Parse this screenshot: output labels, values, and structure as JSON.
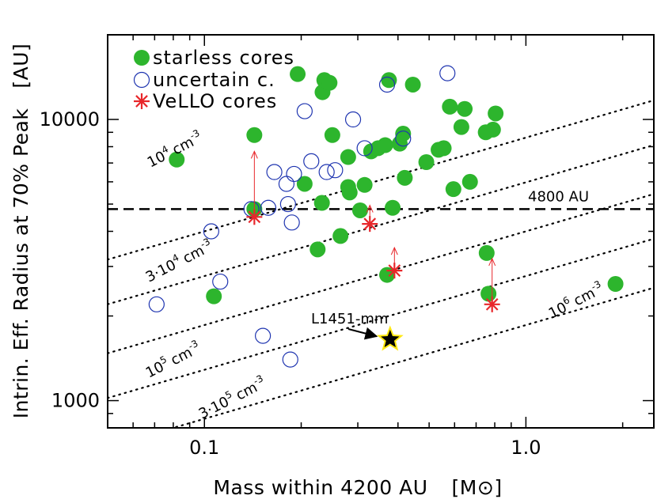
{
  "chart_data": {
    "type": "scatter",
    "x_scale": "log",
    "y_scale": "log",
    "xlim": [
      0.05,
      2.5
    ],
    "ylim": [
      800,
      20000
    ],
    "xlabel": "Mass within 4200 AU",
    "xlabel_unit": "[M⊙]",
    "ylabel": "Intrin. Eff. Radius at 70% Peak",
    "ylabel_unit": "[AU]",
    "x_ticks": [
      {
        "value": 0.1,
        "label": "0.1"
      },
      {
        "value": 1.0,
        "label": "1.0"
      }
    ],
    "y_ticks": [
      {
        "value": 1000,
        "label": "1000"
      },
      {
        "value": 10000,
        "label": "10000"
      }
    ],
    "legend": {
      "position": "top-left",
      "entries": [
        {
          "label": "starless cores",
          "symbol": "filled-circle",
          "color": "#2db52d"
        },
        {
          "label": "uncertain c.",
          "symbol": "open-circle",
          "color": "#1f35b0"
        },
        {
          "label": "VeLLO cores",
          "symbol": "asterisk",
          "color": "#e8272b"
        }
      ]
    },
    "series": [
      {
        "name": "starless cores",
        "color": "#2db52d",
        "points": [
          [
            0.082,
            7200
          ],
          [
            0.107,
            2350
          ],
          [
            0.143,
            8800
          ],
          [
            0.143,
            4800
          ],
          [
            0.195,
            14500
          ],
          [
            0.205,
            5900
          ],
          [
            0.225,
            3450
          ],
          [
            0.232,
            5050
          ],
          [
            0.233,
            12500
          ],
          [
            0.236,
            13800
          ],
          [
            0.245,
            13500
          ],
          [
            0.25,
            8800
          ],
          [
            0.265,
            3850
          ],
          [
            0.28,
            7350
          ],
          [
            0.28,
            5750
          ],
          [
            0.283,
            5500
          ],
          [
            0.305,
            4750
          ],
          [
            0.315,
            5850
          ],
          [
            0.33,
            7700
          ],
          [
            0.347,
            7900
          ],
          [
            0.365,
            8100
          ],
          [
            0.37,
            2800
          ],
          [
            0.375,
            13800
          ],
          [
            0.385,
            4850
          ],
          [
            0.405,
            8200
          ],
          [
            0.415,
            8900
          ],
          [
            0.42,
            6200
          ],
          [
            0.445,
            13300
          ],
          [
            0.49,
            7050
          ],
          [
            0.535,
            7800
          ],
          [
            0.555,
            7900
          ],
          [
            0.58,
            11100
          ],
          [
            0.595,
            5650
          ],
          [
            0.63,
            9400
          ],
          [
            0.645,
            10900
          ],
          [
            0.67,
            6000
          ],
          [
            0.75,
            9000
          ],
          [
            0.755,
            3350
          ],
          [
            0.765,
            2400
          ],
          [
            0.79,
            9200
          ],
          [
            0.805,
            10500
          ],
          [
            1.9,
            2600
          ]
        ]
      },
      {
        "name": "uncertain c.",
        "color": "#1f35b0",
        "points": [
          [
            0.071,
            2200
          ],
          [
            0.105,
            4000
          ],
          [
            0.112,
            2650
          ],
          [
            0.14,
            4800
          ],
          [
            0.152,
            1700
          ],
          [
            0.158,
            4850
          ],
          [
            0.165,
            6500
          ],
          [
            0.18,
            5900
          ],
          [
            0.182,
            5000
          ],
          [
            0.185,
            1400
          ],
          [
            0.187,
            4300
          ],
          [
            0.19,
            6400
          ],
          [
            0.205,
            10700
          ],
          [
            0.215,
            7100
          ],
          [
            0.24,
            6500
          ],
          [
            0.255,
            6600
          ],
          [
            0.29,
            10000
          ],
          [
            0.315,
            7900
          ],
          [
            0.37,
            13300
          ],
          [
            0.415,
            8550
          ],
          [
            0.57,
            14600
          ]
        ]
      },
      {
        "name": "VeLLO cores",
        "color": "#e8272b",
        "points": [
          [
            0.143,
            4500
          ],
          [
            0.327,
            4250
          ],
          [
            0.39,
            2900
          ],
          [
            0.785,
            2200
          ]
        ],
        "arrows": [
          {
            "from": [
              0.143,
              4550
            ],
            "to": [
              0.143,
              7700
            ]
          },
          {
            "from": [
              0.327,
              4300
            ],
            "to": [
              0.327,
              4950
            ]
          },
          {
            "from": [
              0.39,
              2950
            ],
            "to": [
              0.39,
              3500
            ]
          },
          {
            "from": [
              0.785,
              2250
            ],
            "to": [
              0.785,
              3200
            ]
          }
        ]
      },
      {
        "name": "L1451-mm",
        "symbol": "star",
        "color": "#000000",
        "edge_color": "#ffe812",
        "points": [
          [
            0.378,
            1650
          ]
        ]
      }
    ],
    "density_lines": [
      {
        "label": "10",
        "exp": "4",
        "unit": "cm",
        "unit_exp": "-3",
        "density": 10000
      },
      {
        "label": "3·10",
        "exp": "4",
        "unit": "cm",
        "unit_exp": "-3",
        "density": 30000
      },
      {
        "label": "10",
        "exp": "5",
        "unit": "cm",
        "unit_exp": "-3",
        "density": 100000
      },
      {
        "label": "3·10",
        "exp": "5",
        "unit": "cm",
        "unit_exp": "-3",
        "density": 300000
      },
      {
        "label": "10",
        "exp": "6",
        "unit": "cm",
        "unit_exp": "-3",
        "density": 1000000
      }
    ],
    "reference_line": {
      "y": 4800,
      "label": "4800 AU",
      "style": "dashed"
    },
    "annotations": [
      {
        "text": "L1451-mm",
        "points_to": [
          0.378,
          1650
        ]
      }
    ]
  }
}
